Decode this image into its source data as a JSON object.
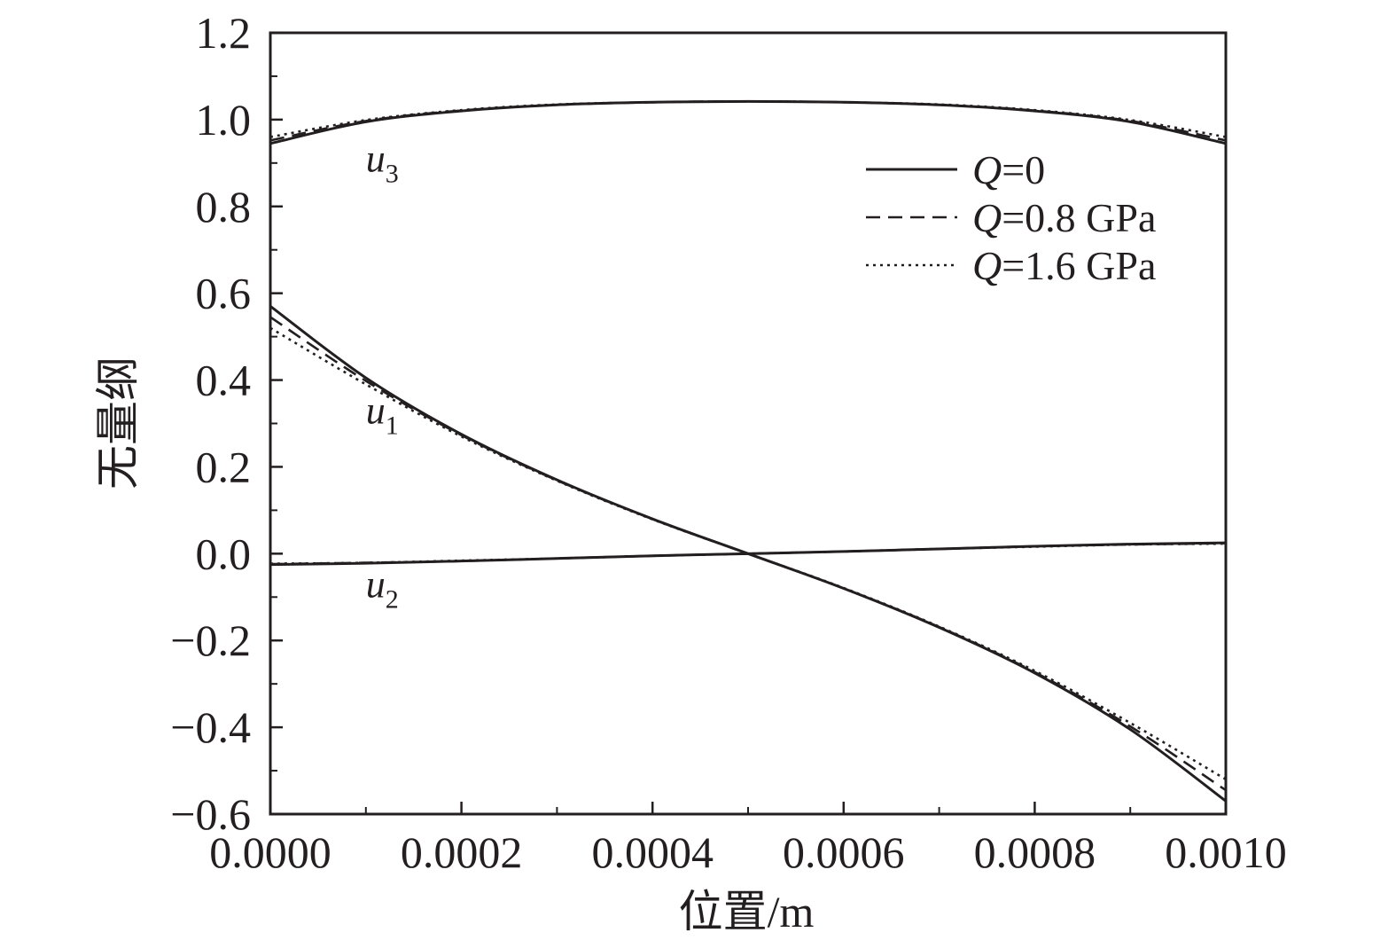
{
  "chart_data": {
    "type": "line",
    "title": "",
    "xlabel": "位置/m",
    "ylabel": "无量纲",
    "xlim": [
      0,
      0.001
    ],
    "ylim": [
      -0.6,
      1.2
    ],
    "x_ticks": [
      "0.0000",
      "0.0002",
      "0.0004",
      "0.0006",
      "0.0008",
      "0.0010"
    ],
    "x_tick_values": [
      0,
      0.0002,
      0.0004,
      0.0006,
      0.0008,
      0.001
    ],
    "y_ticks": [
      "−0.6",
      "−0.4",
      "−0.2",
      "0.0",
      "0.2",
      "0.4",
      "0.6",
      "0.8",
      "1.0",
      "1.2"
    ],
    "y_tick_values": [
      -0.6,
      -0.4,
      -0.2,
      0,
      0.2,
      0.4,
      0.6,
      0.8,
      1.0,
      1.2
    ],
    "grid": false,
    "legend_position": "top-right",
    "legend": [
      {
        "label": "Q=0",
        "label_var": "Q",
        "label_rest": "=0",
        "style": "solid"
      },
      {
        "label": "Q=0.8 GPa",
        "label_var": "Q",
        "label_rest": "=0.8 GPa",
        "style": "dashed"
      },
      {
        "label": "Q=1.6 GPa",
        "label_var": "Q",
        "label_rest": "=1.6 GPa",
        "style": "dotted"
      }
    ],
    "curve_labels": [
      {
        "main": "u",
        "sub": "3",
        "x": 0.0001,
        "y": 0.88
      },
      {
        "main": "u",
        "sub": "1",
        "x": 0.0001,
        "y": 0.3
      },
      {
        "main": "u",
        "sub": "2",
        "x": 0.0001,
        "y": -0.1
      }
    ],
    "x": [
      0,
      0.0001,
      0.0002,
      0.0003,
      0.0004,
      0.0005,
      0.0006,
      0.0007,
      0.0008,
      0.0009,
      0.001
    ],
    "series": [
      {
        "group": "u3",
        "style": "solid",
        "values": [
          0.945,
          0.995,
          1.02,
          1.034,
          1.04,
          1.042,
          1.04,
          1.034,
          1.02,
          0.995,
          0.945
        ]
      },
      {
        "group": "u3",
        "style": "dashed",
        "values": [
          0.952,
          0.997,
          1.021,
          1.034,
          1.04,
          1.042,
          1.04,
          1.034,
          1.021,
          0.997,
          0.952
        ]
      },
      {
        "group": "u3",
        "style": "dotted",
        "values": [
          0.96,
          0.999,
          1.022,
          1.035,
          1.04,
          1.042,
          1.04,
          1.035,
          1.022,
          0.999,
          0.96
        ]
      },
      {
        "group": "u1",
        "style": "solid",
        "values": [
          0.57,
          0.405,
          0.275,
          0.17,
          0.08,
          0.0,
          -0.08,
          -0.17,
          -0.275,
          -0.405,
          -0.57
        ]
      },
      {
        "group": "u1",
        "style": "dashed",
        "values": [
          0.545,
          0.398,
          0.273,
          0.169,
          0.08,
          0.0,
          -0.08,
          -0.169,
          -0.273,
          -0.398,
          -0.545
        ]
      },
      {
        "group": "u1",
        "style": "dotted",
        "values": [
          0.52,
          0.39,
          0.27,
          0.168,
          0.079,
          0.0,
          -0.079,
          -0.168,
          -0.27,
          -0.39,
          -0.52
        ]
      },
      {
        "group": "u2",
        "style": "solid",
        "values": [
          -0.025,
          -0.022,
          -0.017,
          -0.011,
          -0.005,
          0.0,
          0.005,
          0.011,
          0.017,
          0.022,
          0.025
        ]
      },
      {
        "group": "u2",
        "style": "dashed",
        "values": [
          -0.024,
          -0.021,
          -0.017,
          -0.011,
          -0.005,
          0.0,
          0.005,
          0.011,
          0.017,
          0.021,
          0.024
        ]
      },
      {
        "group": "u2",
        "style": "dotted",
        "values": [
          -0.023,
          -0.021,
          -0.016,
          -0.011,
          -0.005,
          0.0,
          0.005,
          0.011,
          0.016,
          0.021,
          0.023
        ]
      }
    ]
  }
}
